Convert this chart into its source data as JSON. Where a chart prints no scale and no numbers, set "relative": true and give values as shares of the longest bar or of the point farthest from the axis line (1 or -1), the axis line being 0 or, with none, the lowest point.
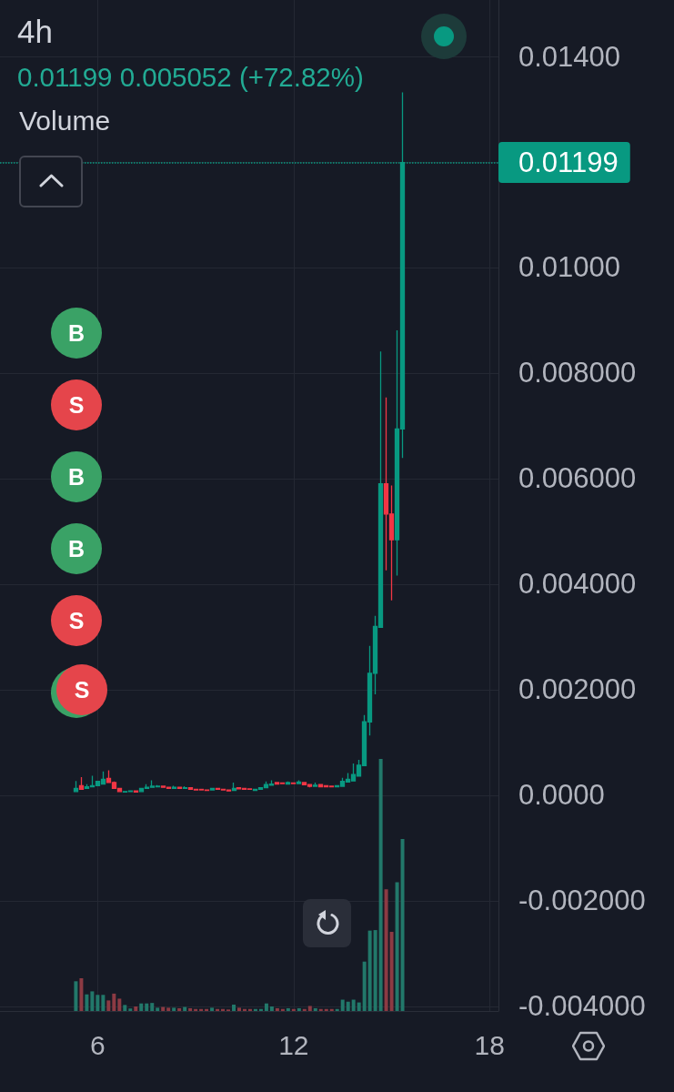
{
  "chart_data": [
    {
      "type": "candlestick",
      "title": "4h",
      "subtitle": "0.01199 0.005052 (+72.82%)",
      "x": [
        5.333,
        5.5,
        5.667,
        5.833,
        6,
        6.167,
        6.333,
        6.5,
        6.667,
        6.833,
        7,
        7.167,
        7.333,
        7.5,
        7.667,
        7.833,
        8,
        8.167,
        8.333,
        8.5,
        8.667,
        8.833,
        9,
        9.167,
        9.333,
        9.5,
        9.667,
        9.833,
        10,
        10.167,
        10.333,
        10.5,
        10.667,
        10.833,
        11,
        11.167,
        11.333,
        11.5,
        11.667,
        11.833,
        12,
        12.167,
        12.333,
        12.5,
        12.667,
        12.833,
        13,
        13.167,
        13.333,
        13.5,
        13.667,
        13.833,
        14,
        14.167,
        14.333,
        14.5,
        14.667,
        14.833,
        15,
        15.167,
        15.333
      ],
      "ohlc": [
        [
          7e-05,
          0.00027,
          6e-05,
          0.00013
        ],
        [
          0.00018,
          0.00034,
          0.0001,
          0.00011
        ],
        [
          0.00013,
          0.00021,
          0.00012,
          0.00016
        ],
        [
          0.00016,
          0.00037,
          0.00015,
          0.00018
        ],
        [
          0.00018,
          0.00027,
          0.00017,
          0.00026
        ],
        [
          0.00021,
          0.00045,
          0.0002,
          0.0003
        ],
        [
          0.00032,
          0.00047,
          0.00023,
          0.00024
        ],
        [
          0.00024,
          0.00026,
          0.00012,
          0.00013
        ],
        [
          0.00013,
          0.00014,
          6e-05,
          7e-05
        ],
        [
          6e-05,
          8e-05,
          6e-05,
          7e-05
        ],
        [
          7e-05,
          8e-05,
          6e-05,
          8e-05
        ],
        [
          8e-05,
          9e-05,
          6e-05,
          6e-05
        ],
        [
          7e-05,
          0.00014,
          6e-05,
          0.00013
        ],
        [
          0.00013,
          0.00021,
          0.00012,
          0.00015
        ],
        [
          0.00015,
          0.00028,
          0.00014,
          0.00017
        ],
        [
          0.00016,
          0.00019,
          0.00016,
          0.00017
        ],
        [
          0.00017,
          0.00018,
          0.00014,
          0.00015
        ],
        [
          0.00015,
          0.00016,
          0.00013,
          0.00013
        ],
        [
          0.00013,
          0.00018,
          0.00012,
          0.00015
        ],
        [
          0.00015,
          0.00016,
          0.00012,
          0.00013
        ],
        [
          0.00013,
          0.00017,
          0.00012,
          0.00014
        ],
        [
          0.00014,
          0.00015,
          0.00011,
          0.00011
        ],
        [
          0.00011,
          0.00012,
          0.0001,
          0.0001
        ],
        [
          0.00011,
          0.00011,
          0.0001,
          0.0001
        ],
        [
          0.0001,
          0.00011,
          9e-05,
          9e-05
        ],
        [
          0.0001,
          0.00014,
          0.0001,
          0.00013
        ],
        [
          0.00013,
          0.00014,
          0.00011,
          0.00011
        ],
        [
          0.00011,
          0.00012,
          9e-05,
          0.0001
        ],
        [
          0.0001,
          0.00011,
          8e-05,
          8e-05
        ],
        [
          9e-05,
          0.00024,
          8e-05,
          0.00013
        ],
        [
          0.00014,
          0.00015,
          0.00012,
          0.00012
        ],
        [
          0.00013,
          0.00014,
          0.00011,
          0.00011
        ],
        [
          0.00012,
          0.00013,
          0.00011,
          0.00011
        ],
        [
          9e-05,
          0.00012,
          8e-05,
          0.00011
        ],
        [
          0.00011,
          0.00014,
          0.0001,
          0.00014
        ],
        [
          0.00014,
          0.00026,
          0.00013,
          0.0002
        ],
        [
          0.00019,
          0.00028,
          0.00018,
          0.00021
        ],
        [
          0.00024,
          0.00025,
          0.00021,
          0.00021
        ],
        [
          0.00023,
          0.00024,
          0.00021,
          0.00022
        ],
        [
          0.00021,
          0.00026,
          0.00021,
          0.00024
        ],
        [
          0.00023,
          0.00024,
          0.00022,
          0.00022
        ],
        [
          0.00022,
          0.00028,
          0.00022,
          0.00025
        ],
        [
          0.00024,
          0.00025,
          0.0002,
          0.0002
        ],
        [
          0.0002,
          0.00021,
          0.00015,
          0.00017
        ],
        [
          0.00017,
          0.00024,
          0.00016,
          0.00019
        ],
        [
          0.0002,
          0.00021,
          0.00015,
          0.00016
        ],
        [
          0.00018,
          0.00019,
          0.00015,
          0.00016
        ],
        [
          0.00017,
          0.00018,
          0.00015,
          0.00016
        ],
        [
          0.00016,
          0.00018,
          0.00015,
          0.00018
        ],
        [
          0.00017,
          0.00033,
          0.00016,
          0.00026
        ],
        [
          0.00025,
          0.00042,
          0.00024,
          0.0003
        ],
        [
          0.00027,
          0.0006,
          0.00026,
          0.00039
        ],
        [
          0.00036,
          0.00067,
          0.00035,
          0.00057
        ],
        [
          0.00056,
          0.00152,
          0.00055,
          0.00139
        ],
        [
          0.00139,
          0.00283,
          0.00113,
          0.00231
        ],
        [
          0.00231,
          0.0034,
          0.00191,
          0.0032
        ],
        [
          0.00318,
          0.00841,
          0.00318,
          0.0059
        ],
        [
          0.0059,
          0.00754,
          0.00426,
          0.00533
        ],
        [
          0.00533,
          0.00587,
          0.00369,
          0.00484
        ],
        [
          0.00484,
          0.00881,
          0.00416,
          0.00694
        ],
        [
          0.00694,
          0.01332,
          0.00639,
          0.01199
        ]
      ],
      "colors": [
        "#089981",
        "#f23645",
        "#089981",
        "#089981",
        "#089981",
        "#089981",
        "#f23645",
        "#f23645",
        "#f23645",
        "#089981",
        "#089981",
        "#f23645",
        "#089981",
        "#089981",
        "#089981",
        "#089981",
        "#f23645",
        "#f23645",
        "#089981",
        "#f23645",
        "#089981",
        "#f23645",
        "#f23645",
        "#f23645",
        "#f23645",
        "#089981",
        "#f23645",
        "#f23645",
        "#f23645",
        "#089981",
        "#f23645",
        "#f23645",
        "#f23645",
        "#089981",
        "#089981",
        "#089981",
        "#089981",
        "#f23645",
        "#f23645",
        "#089981",
        "#f23645",
        "#089981",
        "#f23645",
        "#f23645",
        "#089981",
        "#f23645",
        "#f23645",
        "#f23645",
        "#089981",
        "#089981",
        "#089981",
        "#089981",
        "#089981",
        "#089981",
        "#089981",
        "#089981",
        "#089981",
        "#f23645",
        "#f23645",
        "#089981",
        "#089981"
      ],
      "xlim": [
        3.01,
        18.27
      ],
      "xticks": [
        6,
        12,
        18
      ],
      "ylim": [
        -0.00409,
        0.01507
      ],
      "yticks": [
        {
          "value": 0.014,
          "label": "0.01400"
        },
        {
          "value": 0.012,
          "label": null
        },
        {
          "value": 0.01,
          "label": "0.01000"
        },
        {
          "value": 0.008,
          "label": "0.008000"
        },
        {
          "value": 0.006,
          "label": "0.006000"
        },
        {
          "value": 0.004,
          "label": "0.004000"
        },
        {
          "value": 0.002,
          "label": "0.002000"
        },
        {
          "value": 0,
          "label": "0.0000"
        },
        {
          "value": -0.002,
          "label": "-0.002000"
        },
        {
          "value": -0.004,
          "label": "-0.004000"
        }
      ],
      "grid": true,
      "tick_labels": "y",
      "ref_lines": [
        {
          "axis": "y",
          "value": 0.01199,
          "label": "0.01199",
          "color": "#089981",
          "line_style": "dotted"
        }
      ],
      "annotations": [
        "B",
        "S",
        "B",
        "B",
        "S",
        "S"
      ]
    },
    {
      "type": "bar",
      "title": "Volume",
      "relative": true,
      "x": [
        5.333,
        5.5,
        5.667,
        5.833,
        6,
        6.167,
        6.333,
        6.5,
        6.667,
        6.833,
        7,
        7.167,
        7.333,
        7.5,
        7.667,
        7.833,
        8,
        8.167,
        8.333,
        8.5,
        8.667,
        8.833,
        9,
        9.167,
        9.333,
        9.5,
        9.667,
        9.833,
        10,
        10.167,
        10.333,
        10.5,
        10.667,
        10.833,
        11,
        11.167,
        11.333,
        11.5,
        11.667,
        11.833,
        12,
        12.167,
        12.333,
        12.5,
        12.667,
        12.833,
        13,
        13.167,
        13.333,
        13.5,
        13.667,
        13.833,
        14,
        14.167,
        14.333,
        14.5,
        14.667,
        14.833,
        15,
        15.167,
        15.333
      ],
      "values": [
        0.118,
        0.13,
        0.066,
        0.078,
        0.064,
        0.064,
        0.042,
        0.069,
        0.049,
        0.024,
        0.01,
        0.018,
        0.03,
        0.03,
        0.032,
        0.013,
        0.016,
        0.013,
        0.013,
        0.011,
        0.016,
        0.011,
        0.008,
        0.008,
        0.008,
        0.013,
        0.008,
        0.008,
        0.006,
        0.025,
        0.013,
        0.008,
        0.008,
        0.008,
        0.008,
        0.03,
        0.018,
        0.011,
        0.008,
        0.011,
        0.008,
        0.011,
        0.008,
        0.02,
        0.011,
        0.008,
        0.008,
        0.008,
        0.008,
        0.045,
        0.037,
        0.045,
        0.034,
        0.196,
        0.319,
        0.321,
        1,
        0.483,
        0.314,
        0.511,
        0.682
      ],
      "colors": [
        "#22786a",
        "#8c3a43",
        "#22786a",
        "#22786a",
        "#22786a",
        "#22786a",
        "#8c3a43",
        "#8c3a43",
        "#8c3a43",
        "#22786a",
        "#22786a",
        "#8c3a43",
        "#22786a",
        "#22786a",
        "#22786a",
        "#22786a",
        "#8c3a43",
        "#8c3a43",
        "#22786a",
        "#8c3a43",
        "#22786a",
        "#8c3a43",
        "#8c3a43",
        "#8c3a43",
        "#8c3a43",
        "#22786a",
        "#8c3a43",
        "#8c3a43",
        "#8c3a43",
        "#22786a",
        "#8c3a43",
        "#8c3a43",
        "#8c3a43",
        "#22786a",
        "#22786a",
        "#22786a",
        "#22786a",
        "#8c3a43",
        "#8c3a43",
        "#22786a",
        "#8c3a43",
        "#22786a",
        "#8c3a43",
        "#8c3a43",
        "#22786a",
        "#8c3a43",
        "#8c3a43",
        "#8c3a43",
        "#22786a",
        "#22786a",
        "#22786a",
        "#22786a",
        "#22786a",
        "#22786a",
        "#22786a",
        "#22786a",
        "#22786a",
        "#8c3a43",
        "#8c3a43",
        "#22786a",
        "#22786a"
      ],
      "xlim": [
        3.01,
        18.27
      ],
      "xticks": [
        6,
        12,
        18
      ],
      "tick_labels": "x"
    }
  ]
}
